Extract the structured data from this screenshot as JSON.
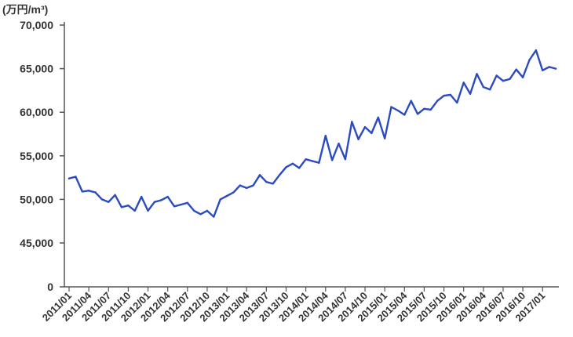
{
  "chart_data": {
    "type": "line",
    "ylabel": "(万円/m³)",
    "ylim": [
      0,
      70000
    ],
    "yticks": [
      "0",
      "45,000",
      "50,000",
      "55,000",
      "60,000",
      "65,000",
      "70,000"
    ],
    "xticks": [
      "2011/01",
      "2011/04",
      "2011/07",
      "2011/10",
      "2012/01",
      "2012/04",
      "2012/07",
      "2012/10",
      "2013/01",
      "2013/04",
      "2013/07",
      "2013/10",
      "2014/01",
      "2014/04",
      "2014/07",
      "2014/10",
      "2015/01",
      "2015/04",
      "2015/07",
      "2015/10",
      "2016/01",
      "2016/04",
      "2016/07",
      "2016/10",
      "2017/01"
    ],
    "series": [
      {
        "color": "#2b4bbf",
        "values": [
          52400,
          52600,
          50900,
          51000,
          50800,
          50000,
          49700,
          50500,
          49100,
          49300,
          48700,
          50300,
          48700,
          49700,
          49900,
          50300,
          49200,
          49400,
          49600,
          48700,
          48300,
          48700,
          48000,
          50000,
          50400,
          50800,
          51600,
          51300,
          51600,
          52800,
          52000,
          51800,
          52800,
          53700,
          54100,
          53600,
          54600,
          54400,
          54200,
          57300,
          54500,
          56400,
          54600,
          58900,
          56900,
          58300,
          57600,
          59400,
          57000,
          60600,
          60200,
          59700,
          61300,
          59800,
          60400,
          60300,
          61300,
          61900,
          62000,
          61100,
          63400,
          62100,
          64400,
          62900,
          62600,
          64200,
          63600,
          63800,
          64900,
          64000,
          66000,
          67100,
          64800,
          65200,
          65000
        ]
      }
    ]
  },
  "colors": {
    "line": "#2b4bbf",
    "axis": "#555555",
    "text": "#333333"
  }
}
